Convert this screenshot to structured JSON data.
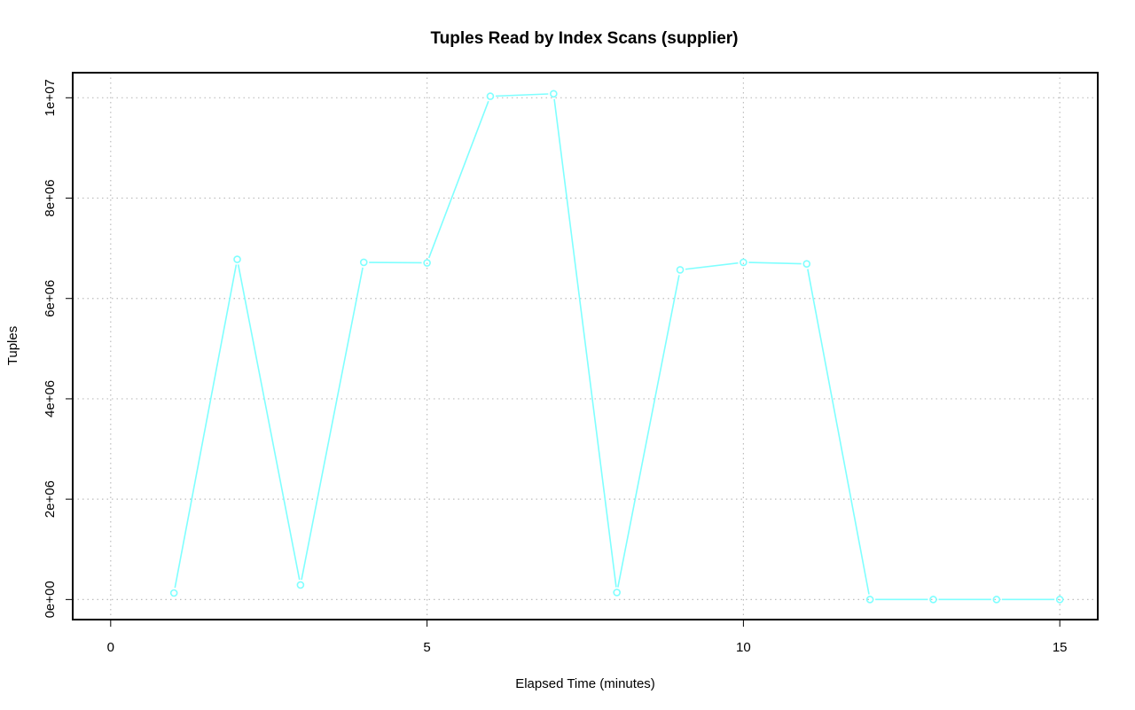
{
  "chart_data": {
    "type": "line",
    "title": "Tuples Read by Index Scans (supplier)",
    "xlabel": "Elapsed Time (minutes)",
    "ylabel": "Tuples",
    "xlim": [
      -0.6,
      15.6
    ],
    "ylim": [
      -400000,
      10500000
    ],
    "x_ticks": [
      0,
      5,
      10,
      15
    ],
    "x_tick_labels": [
      "0",
      "5",
      "10",
      "15"
    ],
    "y_ticks": [
      0,
      2000000,
      4000000,
      6000000,
      8000000,
      10000000
    ],
    "y_tick_labels": [
      "0e+00",
      "2e+06",
      "4e+06",
      "6e+06",
      "8e+06",
      "1e+07"
    ],
    "grid": true,
    "series": [
      {
        "color": "#7FFFFF",
        "marker": "open-circle",
        "x": [
          1,
          2,
          3,
          4,
          5,
          6,
          7,
          8,
          9,
          10,
          11,
          12,
          13,
          14,
          15
        ],
        "values": [
          130000,
          6780000,
          290000,
          6720000,
          6710000,
          10030000,
          10080000,
          140000,
          6570000,
          6720000,
          6690000,
          0,
          0,
          0,
          0
        ]
      }
    ]
  }
}
